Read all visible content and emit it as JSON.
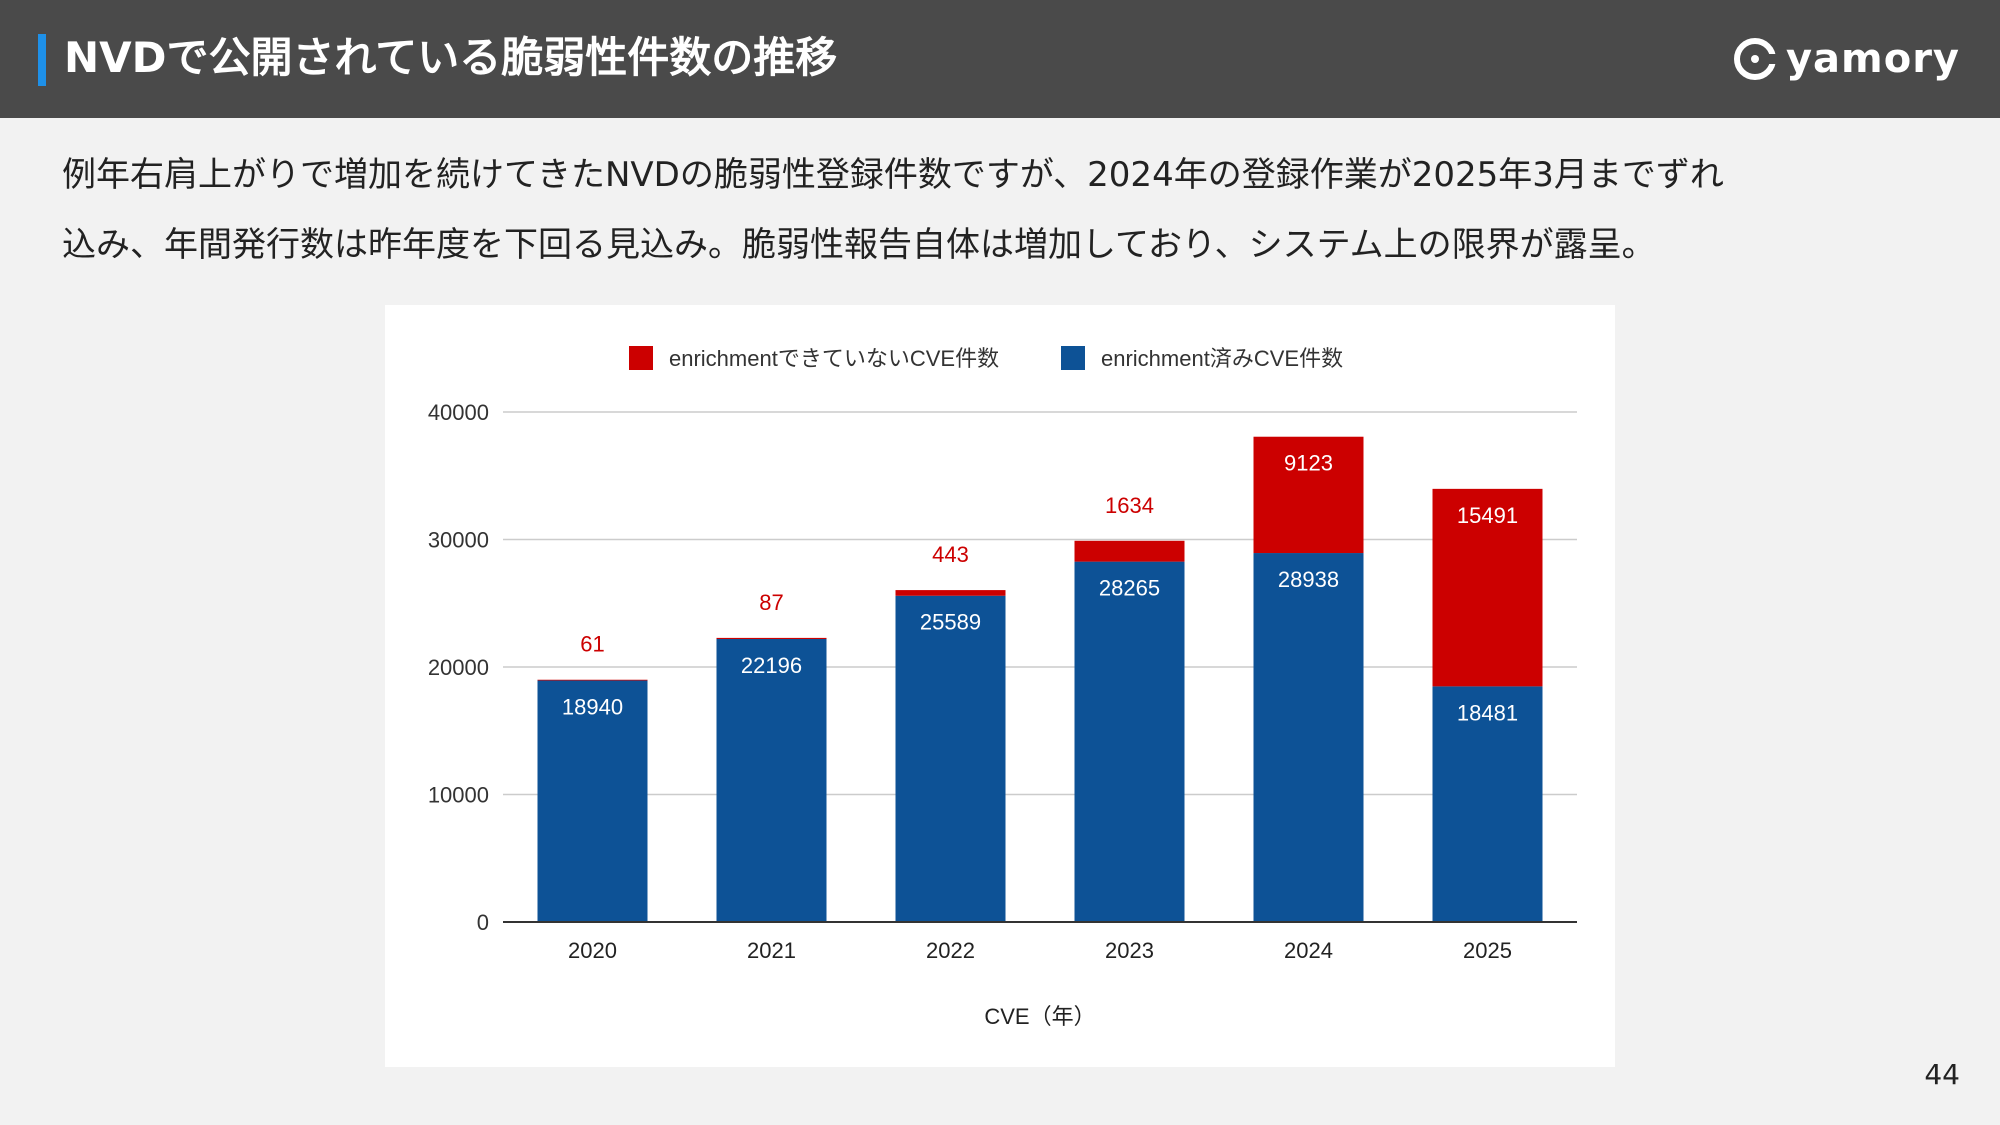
{
  "slide": {
    "title": "NVDで公開されている脆弱性件数の推移",
    "description_line1": "例年右肩上がりで増加を続けてきたNVDの脆弱性登録件数ですが、2024年の登録作業が2025年3月までずれ",
    "description_line2": "込み、年間発行数は昨年度を下回る見込み。脆弱性報告自体は増加しており、システム上の限界が露呈。",
    "page_number": "44"
  },
  "brand": {
    "logo_text": "yamory",
    "logo_icon": "yamory-logo-icon"
  },
  "colors": {
    "header_bg": "#4a4a4a",
    "accent": "#1e90e8",
    "enriched": "#0d5296",
    "not_enriched": "#cc0000",
    "label_on_bar": "#ffffff",
    "label_above": "#cc0000"
  },
  "chart_data": {
    "type": "bar",
    "stacked": true,
    "title": "",
    "xlabel": "CVE（年）",
    "ylabel": "",
    "ylim": [
      0,
      40000
    ],
    "yticks": [
      0,
      10000,
      20000,
      30000,
      40000
    ],
    "grid": true,
    "legend_position": "top",
    "categories": [
      "2020",
      "2021",
      "2022",
      "2023",
      "2024",
      "2025"
    ],
    "series": [
      {
        "name": "enrichment済みCVE件数",
        "color": "#0d5296",
        "values": [
          18940,
          22196,
          25589,
          28265,
          28938,
          18481
        ]
      },
      {
        "name": "enrichmentできていないCVE件数",
        "color": "#cc0000",
        "values": [
          61,
          87,
          443,
          1634,
          9123,
          15491
        ]
      }
    ],
    "legend_order": [
      "enrichmentできていないCVE件数",
      "enrichment済みCVE件数"
    ]
  }
}
